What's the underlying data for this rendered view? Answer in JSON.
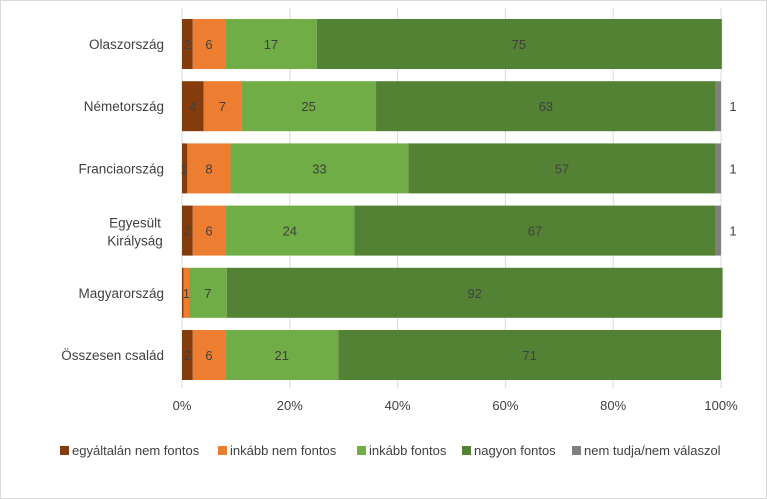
{
  "chart_data": {
    "type": "bar",
    "orientation": "horizontal",
    "stacked": "percent",
    "categories": [
      "Olaszország",
      "Németország",
      "Franciaország",
      "Egyesült Királyság",
      "Magyarország",
      "Összesen család"
    ],
    "series": [
      {
        "name": "egyáltalán nem fontos",
        "color": "#843c0c",
        "values": [
          2,
          4,
          1,
          2,
          0.3,
          2
        ],
        "labels": [
          "2",
          "4",
          "1",
          "2",
          "",
          "2"
        ]
      },
      {
        "name": "inkább nem fontos",
        "color": "#ed7d31",
        "values": [
          6,
          7,
          8,
          6,
          1,
          6
        ],
        "labels": [
          "6",
          "7",
          "8",
          "6",
          "1",
          "6"
        ]
      },
      {
        "name": "inkább fontos",
        "color": "#70ad47",
        "values": [
          17,
          25,
          33,
          24,
          7,
          21
        ],
        "labels": [
          "17",
          "25",
          "33",
          "24",
          "7",
          "21"
        ]
      },
      {
        "name": "nagyon fontos",
        "color": "#548235",
        "values": [
          75,
          63,
          57,
          67,
          92,
          71
        ],
        "labels": [
          "75",
          "63",
          "57",
          "67",
          "92",
          "71"
        ]
      },
      {
        "name": "nem tudja/nem válaszol",
        "color": "#808080",
        "values": [
          0.2,
          1,
          1,
          1,
          0,
          0
        ],
        "labels": [
          "",
          "1",
          "1",
          "1",
          "",
          ""
        ]
      }
    ],
    "xticks": [
      "0%",
      "20%",
      "40%",
      "60%",
      "80%",
      "100%"
    ],
    "xlim": [
      0,
      100
    ],
    "grid": true,
    "legend": "bottom"
  }
}
